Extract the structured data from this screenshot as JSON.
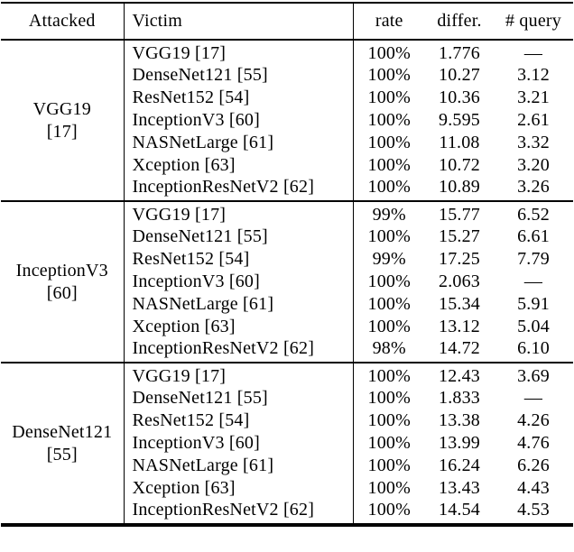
{
  "colors": {
    "background": "#ffffff",
    "text": "#000000",
    "rule": "#000000"
  },
  "table": {
    "headers": {
      "attacked": "Attacked",
      "victim": "Victim",
      "rate": "rate",
      "differ": "differ.",
      "query": "# query"
    },
    "groups": [
      {
        "attacked": {
          "name": "VGG19",
          "ref": "[17]"
        },
        "rows": [
          {
            "victim": "VGG19 [17]",
            "rate": "100%",
            "differ": "1.776",
            "query": "—"
          },
          {
            "victim": "DenseNet121 [55]",
            "rate": "100%",
            "differ": "10.27",
            "query": "3.12"
          },
          {
            "victim": "ResNet152 [54]",
            "rate": "100%",
            "differ": "10.36",
            "query": "3.21"
          },
          {
            "victim": "InceptionV3 [60]",
            "rate": "100%",
            "differ": "9.595",
            "query": "2.61"
          },
          {
            "victim": "NASNetLarge [61]",
            "rate": "100%",
            "differ": "11.08",
            "query": "3.32"
          },
          {
            "victim": "Xception [63]",
            "rate": "100%",
            "differ": "10.72",
            "query": "3.20"
          },
          {
            "victim": "InceptionResNetV2 [62]",
            "rate": "100%",
            "differ": "10.89",
            "query": "3.26"
          }
        ]
      },
      {
        "attacked": {
          "name": "InceptionV3",
          "ref": "[60]"
        },
        "rows": [
          {
            "victim": "VGG19 [17]",
            "rate": "99%",
            "differ": "15.77",
            "query": "6.52"
          },
          {
            "victim": "DenseNet121 [55]",
            "rate": "100%",
            "differ": "15.27",
            "query": "6.61"
          },
          {
            "victim": "ResNet152 [54]",
            "rate": "99%",
            "differ": "17.25",
            "query": "7.79"
          },
          {
            "victim": "InceptionV3 [60]",
            "rate": "100%",
            "differ": "2.063",
            "query": "—"
          },
          {
            "victim": "NASNetLarge [61]",
            "rate": "100%",
            "differ": "15.34",
            "query": "5.91"
          },
          {
            "victim": "Xception [63]",
            "rate": "100%",
            "differ": "13.12",
            "query": "5.04"
          },
          {
            "victim": "InceptionResNetV2 [62]",
            "rate": "98%",
            "differ": "14.72",
            "query": "6.10"
          }
        ]
      },
      {
        "attacked": {
          "name": "DenseNet121",
          "ref": "[55]"
        },
        "rows": [
          {
            "victim": "VGG19 [17]",
            "rate": "100%",
            "differ": "12.43",
            "query": "3.69"
          },
          {
            "victim": "DenseNet121 [55]",
            "rate": "100%",
            "differ": "1.833",
            "query": "—"
          },
          {
            "victim": "ResNet152 [54]",
            "rate": "100%",
            "differ": "13.38",
            "query": "4.26"
          },
          {
            "victim": "InceptionV3 [60]",
            "rate": "100%",
            "differ": "13.99",
            "query": "4.76"
          },
          {
            "victim": "NASNetLarge [61]",
            "rate": "100%",
            "differ": "16.24",
            "query": "6.26"
          },
          {
            "victim": "Xception [63]",
            "rate": "100%",
            "differ": "13.43",
            "query": "4.43"
          },
          {
            "victim": "InceptionResNetV2 [62]",
            "rate": "100%",
            "differ": "14.54",
            "query": "4.53"
          }
        ]
      }
    ]
  }
}
